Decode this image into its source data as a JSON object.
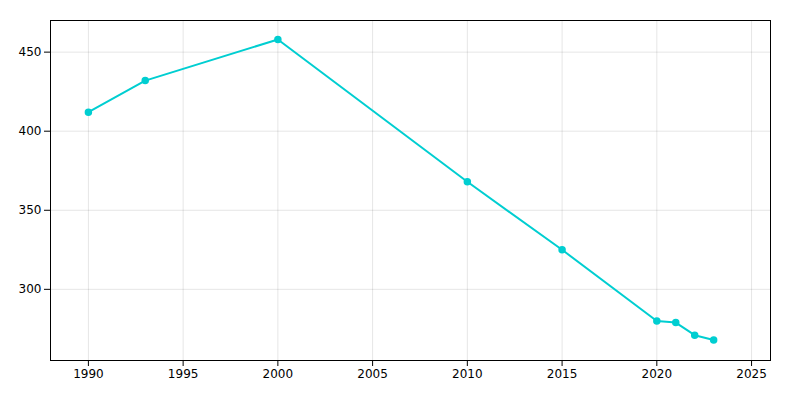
{
  "chart_data": {
    "type": "line",
    "x": [
      1990,
      1993,
      2000,
      2010,
      2015,
      2020,
      2021,
      2022,
      2023
    ],
    "values": [
      412,
      432,
      458,
      368,
      325,
      280,
      279,
      271,
      268
    ],
    "color": "#00CED1",
    "marker": "circle",
    "xlim": [
      1988,
      2026
    ],
    "ylim": [
      255,
      470
    ],
    "xticks": [
      1990,
      1995,
      2000,
      2005,
      2010,
      2015,
      2020,
      2025
    ],
    "yticks": [
      300,
      350,
      400,
      450
    ],
    "grid": true
  }
}
